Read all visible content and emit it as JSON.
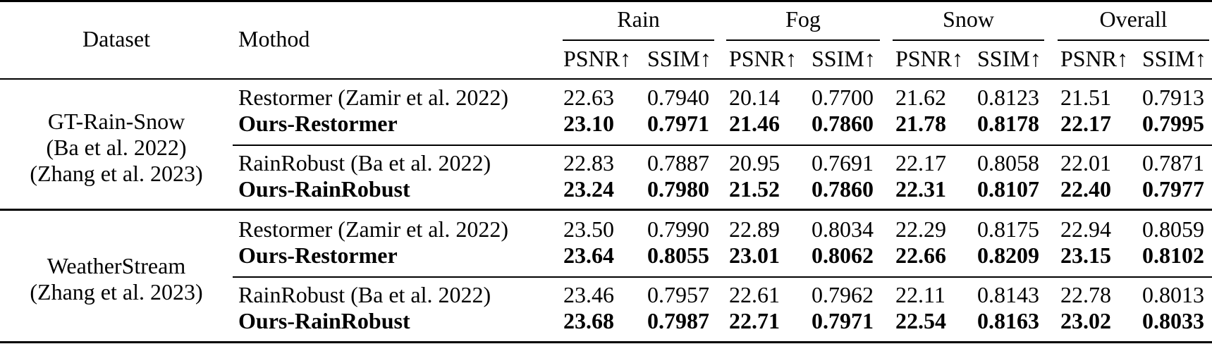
{
  "header": {
    "dataset": "Dataset",
    "method": "Mothod",
    "groups": [
      "Rain",
      "Fog",
      "Snow",
      "Overall"
    ],
    "metrics": [
      "PSNR↑",
      "SSIM↑"
    ]
  },
  "blocks": [
    {
      "dataset_lines": [
        "GT-Rain-Snow",
        "(Ba et al. 2022)",
        "(Zhang et al. 2023)"
      ],
      "rows": [
        {
          "method": "Restormer (Zamir et al. 2022)",
          "bold": false,
          "values": [
            "22.63",
            "0.7940",
            "20.14",
            "0.7700",
            "21.62",
            "0.8123",
            "21.51",
            "0.7913"
          ]
        },
        {
          "method": "Ours-Restormer",
          "bold": true,
          "values": [
            "23.10",
            "0.7971",
            "21.46",
            "0.7860",
            "21.78",
            "0.8178",
            "22.17",
            "0.7995"
          ]
        },
        {
          "method": "RainRobust (Ba et al. 2022)",
          "bold": false,
          "values": [
            "22.83",
            "0.7887",
            "20.95",
            "0.7691",
            "22.17",
            "0.8058",
            "22.01",
            "0.7871"
          ]
        },
        {
          "method": "Ours-RainRobust",
          "bold": true,
          "values": [
            "23.24",
            "0.7980",
            "21.52",
            "0.7860",
            "22.31",
            "0.8107",
            "22.40",
            "0.7977"
          ]
        }
      ]
    },
    {
      "dataset_lines": [
        "WeatherStream",
        "(Zhang et al. 2023)"
      ],
      "rows": [
        {
          "method": "Restormer (Zamir et al. 2022)",
          "bold": false,
          "values": [
            "23.50",
            "0.7990",
            "22.89",
            "0.8034",
            "22.29",
            "0.8175",
            "22.94",
            "0.8059"
          ]
        },
        {
          "method": "Ours-Restormer",
          "bold": true,
          "values": [
            "23.64",
            "0.8055",
            "23.01",
            "0.8062",
            "22.66",
            "0.8209",
            "23.15",
            "0.8102"
          ]
        },
        {
          "method": "RainRobust (Ba et al. 2022)",
          "bold": false,
          "values": [
            "23.46",
            "0.7957",
            "22.61",
            "0.7962",
            "22.11",
            "0.8143",
            "22.78",
            "0.8013"
          ]
        },
        {
          "method": "Ours-RainRobust",
          "bold": true,
          "values": [
            "23.68",
            "0.7987",
            "22.71",
            "0.7971",
            "22.54",
            "0.8163",
            "23.02",
            "0.8033"
          ]
        }
      ]
    }
  ]
}
